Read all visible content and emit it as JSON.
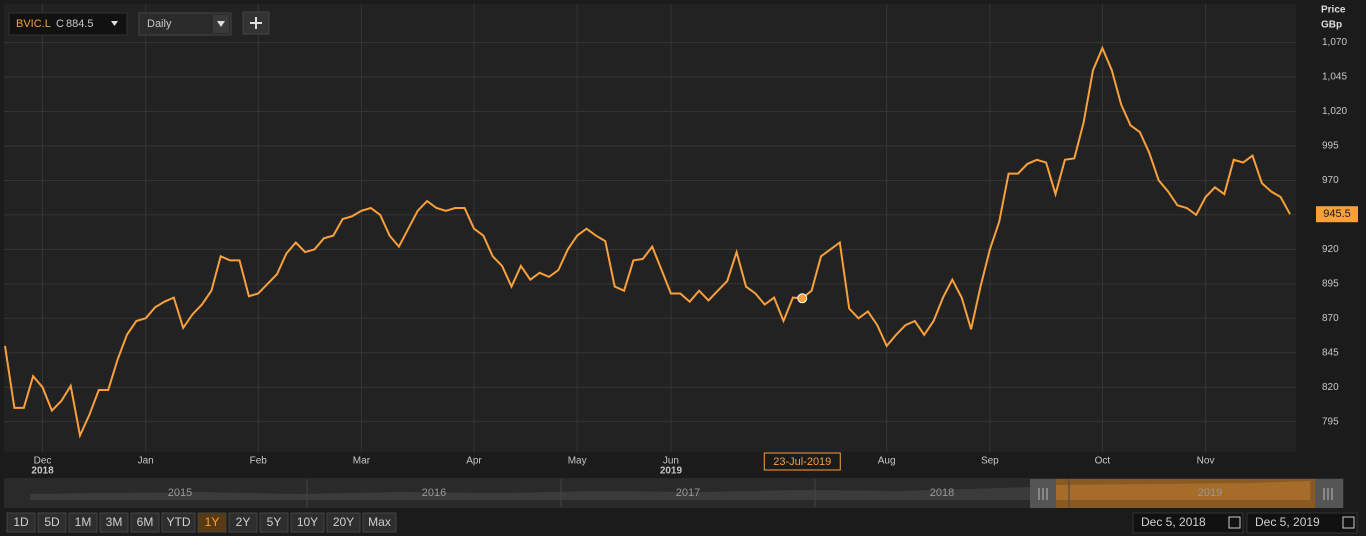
{
  "chart_data": {
    "type": "line",
    "symbol": "BVIC.L",
    "close_label": "C",
    "interval": "Daily",
    "y_axis_label": [
      "Price",
      "GBp"
    ],
    "tooltip": "23-Jul-2019",
    "categories": [
      null,
      null,
      null,
      null,
      "Dec",
      null,
      null,
      null,
      null,
      null,
      null,
      null,
      null,
      null,
      null,
      "Jan",
      null,
      null,
      null,
      null,
      null,
      null,
      null,
      null,
      null,
      null,
      null,
      "Feb",
      null,
      null,
      null,
      null,
      null,
      null,
      null,
      null,
      null,
      null,
      "Mar",
      null,
      null,
      null,
      null,
      null,
      null,
      null,
      null,
      null,
      null,
      null,
      "Apr",
      null,
      null,
      null,
      null,
      null,
      null,
      null,
      null,
      null,
      null,
      "May",
      null,
      null,
      null,
      null,
      null,
      null,
      null,
      null,
      null,
      "Jun",
      null,
      null,
      null,
      null,
      null,
      null,
      null,
      null,
      null,
      null,
      null,
      null,
      null,
      null,
      null,
      null,
      null,
      null,
      null,
      null,
      null,
      null,
      "Aug",
      null,
      null,
      null,
      null,
      null,
      null,
      null,
      null,
      null,
      null,
      "Sep",
      null,
      null,
      null,
      null,
      null,
      null,
      null,
      null,
      null,
      null,
      null,
      "Oct",
      null,
      null,
      null,
      null,
      null,
      null,
      null,
      null,
      null,
      null,
      "Nov",
      null,
      null,
      null,
      null,
      null,
      null,
      null,
      null,
      null
    ],
    "year_labels": [
      "2018",
      "2019"
    ],
    "series": [
      {
        "name": "BVIC.L",
        "color": "#f7a03c",
        "values": [
          850,
          805,
          805,
          828,
          820,
          803,
          810,
          821,
          785,
          800,
          818,
          818,
          840,
          858,
          868,
          870,
          878,
          882,
          885,
          863,
          873,
          880,
          890,
          915,
          912,
          912,
          886,
          888,
          895,
          902,
          917,
          925,
          918,
          920,
          928,
          930,
          942,
          944,
          948,
          950,
          945,
          930,
          922,
          935,
          948,
          955,
          950,
          948,
          950,
          950,
          935,
          930,
          915,
          908,
          893,
          908,
          898,
          903,
          900,
          905,
          920,
          930,
          935,
          930,
          926,
          893,
          890,
          912,
          913,
          922,
          905,
          888,
          888,
          882,
          890,
          883,
          890,
          897,
          918,
          893,
          888,
          880,
          885,
          868,
          885,
          884.5,
          890,
          915,
          920,
          925,
          877,
          870,
          875,
          865,
          850,
          858,
          865,
          868,
          858,
          868,
          885,
          898,
          885,
          862,
          893,
          920,
          940,
          975,
          975,
          982,
          985,
          983,
          960,
          985,
          986,
          1012,
          1050,
          1066,
          1050,
          1025,
          1010,
          1005,
          990,
          970,
          962,
          952,
          950,
          945,
          958,
          965,
          960,
          985,
          983,
          988,
          968,
          962,
          958,
          945.5
        ]
      }
    ],
    "ylim": [
      773,
      1098
    ],
    "yticks": [
      795,
      820,
      845,
      870,
      895,
      920,
      945,
      970,
      995,
      {
        "value": 1020,
        "label": "1,020"
      },
      {
        "value": 1045,
        "label": "1,045"
      },
      {
        "value": 1070,
        "label": "1,070"
      }
    ],
    "grid": true
  },
  "navigator": {
    "years": [
      "2015",
      "2016",
      "2017",
      "2018",
      "2019"
    ],
    "ranges": [
      "1D",
      "5D",
      "1M",
      "3M",
      "6M",
      "YTD",
      "1Y",
      "2Y",
      "5Y",
      "10Y",
      "20Y",
      "Max"
    ],
    "active_range": "1Y",
    "start_date": "Dec 5, 2018",
    "end_date": "Dec 5, 2019"
  }
}
